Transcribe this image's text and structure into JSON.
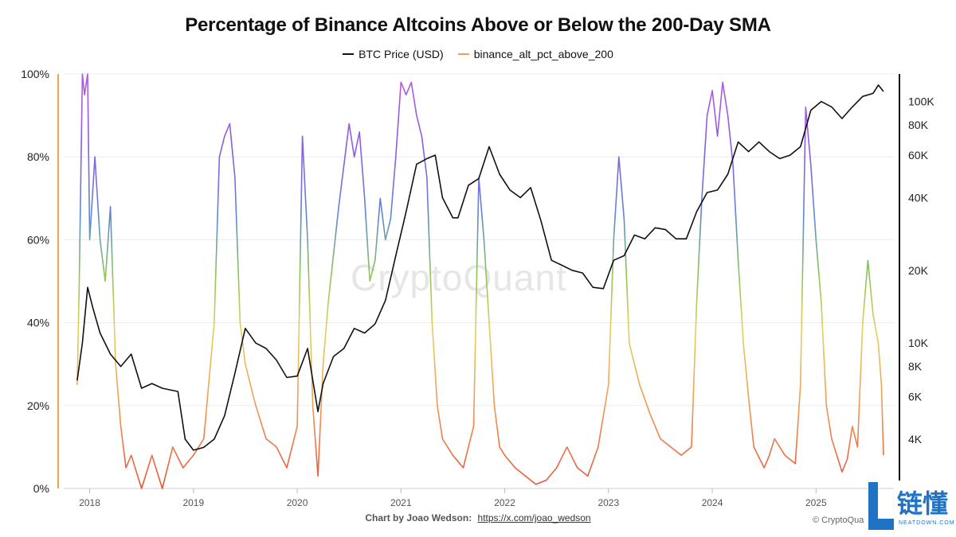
{
  "title": "Percentage of Binance Altcoins Above or Below the 200-Day SMA",
  "legend": [
    {
      "label": "BTC Price (USD)",
      "color": "#111111"
    },
    {
      "label": "binance_alt_pct_above_200",
      "color": "#e8a25a"
    }
  ],
  "watermark": "CryptoQuant",
  "footer": {
    "prefix": "Chart by Joao Wedson:",
    "link": "https://x.com/joao_wedson"
  },
  "copyright": "© CryptoQua",
  "badge": {
    "cn": "链懂",
    "en": "NEATDOWN.COM"
  },
  "chart_data": {
    "type": "line",
    "title": "Percentage of Binance Altcoins Above or Below the 200-Day SMA",
    "x_ticks": [
      "2018",
      "2019",
      "2020",
      "2021",
      "2022",
      "2023",
      "2024",
      "2025"
    ],
    "x_range": [
      2017.75,
      2025.75
    ],
    "y_left": {
      "ticks": [
        "0%",
        "20%",
        "40%",
        "60%",
        "80%",
        "100%"
      ],
      "range": [
        0,
        100
      ]
    },
    "y_right": {
      "scale": "log",
      "ticks": [
        "4K",
        "6K",
        "8K",
        "10K",
        "20K",
        "40K",
        "60K",
        "80K",
        "100K"
      ],
      "tick_values": [
        4000,
        6000,
        8000,
        10000,
        20000,
        40000,
        60000,
        80000,
        100000
      ],
      "range": [
        2500,
        130000
      ]
    },
    "series": [
      {
        "name": "BTC Price (USD)",
        "axis": "right",
        "color": "#111111",
        "x": [
          2017.88,
          2017.93,
          2017.98,
          2018.03,
          2018.1,
          2018.2,
          2018.3,
          2018.4,
          2018.5,
          2018.6,
          2018.7,
          2018.85,
          2018.92,
          2019.0,
          2019.1,
          2019.2,
          2019.3,
          2019.4,
          2019.5,
          2019.6,
          2019.7,
          2019.8,
          2019.9,
          2020.0,
          2020.1,
          2020.2,
          2020.25,
          2020.35,
          2020.45,
          2020.55,
          2020.65,
          2020.75,
          2020.85,
          2020.95,
          2021.05,
          2021.15,
          2021.25,
          2021.33,
          2021.4,
          2021.5,
          2021.55,
          2021.65,
          2021.75,
          2021.85,
          2021.95,
          2022.05,
          2022.15,
          2022.25,
          2022.35,
          2022.45,
          2022.55,
          2022.65,
          2022.75,
          2022.85,
          2022.95,
          2023.05,
          2023.15,
          2023.25,
          2023.35,
          2023.45,
          2023.55,
          2023.65,
          2023.75,
          2023.85,
          2023.95,
          2024.05,
          2024.15,
          2024.25,
          2024.35,
          2024.45,
          2024.55,
          2024.65,
          2024.75,
          2024.85,
          2024.95,
          2025.05,
          2025.15,
          2025.25,
          2025.35,
          2025.45,
          2025.55,
          2025.6,
          2025.65
        ],
        "y": [
          7000,
          10000,
          17000,
          14000,
          11000,
          9000,
          8000,
          9000,
          6500,
          6800,
          6500,
          6300,
          4000,
          3600,
          3700,
          4000,
          5000,
          7500,
          11500,
          10000,
          9500,
          8500,
          7200,
          7300,
          9500,
          5200,
          6800,
          8800,
          9500,
          11500,
          11000,
          12000,
          15000,
          23000,
          35000,
          55000,
          58000,
          60000,
          40000,
          33000,
          33000,
          45000,
          48000,
          65000,
          50000,
          43000,
          40000,
          44000,
          32000,
          22000,
          21000,
          20000,
          19500,
          17000,
          16800,
          22000,
          23000,
          28000,
          27000,
          30000,
          29500,
          27000,
          27000,
          35000,
          42000,
          43000,
          50000,
          68000,
          62000,
          68000,
          62000,
          58000,
          60000,
          65000,
          92000,
          100000,
          95000,
          85000,
          95000,
          105000,
          108000,
          117000,
          110000
        ]
      },
      {
        "name": "binance_alt_pct_above_200",
        "axis": "left",
        "color": "#e8a25a",
        "x": [
          2017.88,
          2017.9,
          2017.93,
          2017.95,
          2017.98,
          2018.0,
          2018.05,
          2018.1,
          2018.15,
          2018.2,
          2018.25,
          2018.3,
          2018.35,
          2018.4,
          2018.5,
          2018.6,
          2018.7,
          2018.8,
          2018.9,
          2019.0,
          2019.1,
          2019.2,
          2019.25,
          2019.3,
          2019.35,
          2019.4,
          2019.45,
          2019.5,
          2019.55,
          2019.6,
          2019.7,
          2019.8,
          2019.9,
          2020.0,
          2020.05,
          2020.1,
          2020.15,
          2020.2,
          2020.25,
          2020.3,
          2020.4,
          2020.5,
          2020.55,
          2020.6,
          2020.65,
          2020.7,
          2020.75,
          2020.8,
          2020.85,
          2020.9,
          2020.95,
          2021.0,
          2021.05,
          2021.1,
          2021.15,
          2021.2,
          2021.25,
          2021.3,
          2021.35,
          2021.4,
          2021.5,
          2021.6,
          2021.7,
          2021.75,
          2021.8,
          2021.85,
          2021.9,
          2021.95,
          2022.0,
          2022.1,
          2022.2,
          2022.3,
          2022.4,
          2022.5,
          2022.6,
          2022.7,
          2022.8,
          2022.9,
          2023.0,
          2023.05,
          2023.1,
          2023.15,
          2023.2,
          2023.3,
          2023.4,
          2023.5,
          2023.6,
          2023.7,
          2023.8,
          2023.85,
          2023.9,
          2023.95,
          2024.0,
          2024.05,
          2024.1,
          2024.15,
          2024.2,
          2024.25,
          2024.3,
          2024.35,
          2024.4,
          2024.5,
          2024.55,
          2024.6,
          2024.7,
          2024.8,
          2024.85,
          2024.9,
          2024.95,
          2025.0,
          2025.05,
          2025.1,
          2025.15,
          2025.2,
          2025.25,
          2025.3,
          2025.35,
          2025.4,
          2025.45,
          2025.5,
          2025.55,
          2025.6,
          2025.63,
          2025.65
        ],
        "y": [
          25,
          50,
          100,
          95,
          100,
          60,
          80,
          60,
          50,
          68,
          30,
          15,
          5,
          8,
          0,
          8,
          0,
          10,
          5,
          8,
          12,
          40,
          80,
          85,
          88,
          75,
          40,
          30,
          25,
          20,
          12,
          10,
          5,
          15,
          85,
          60,
          20,
          3,
          30,
          45,
          68,
          88,
          80,
          86,
          70,
          50,
          55,
          70,
          60,
          65,
          80,
          98,
          95,
          98,
          90,
          85,
          75,
          40,
          20,
          12,
          8,
          5,
          15,
          75,
          60,
          40,
          20,
          10,
          8,
          5,
          3,
          1,
          2,
          5,
          10,
          5,
          3,
          10,
          25,
          60,
          80,
          65,
          35,
          25,
          18,
          12,
          10,
          8,
          10,
          45,
          70,
          90,
          96,
          85,
          98,
          90,
          78,
          55,
          35,
          22,
          10,
          5,
          8,
          12,
          8,
          6,
          25,
          92,
          78,
          60,
          45,
          20,
          12,
          8,
          4,
          7,
          15,
          10,
          40,
          55,
          42,
          35,
          25,
          8
        ]
      }
    ]
  }
}
